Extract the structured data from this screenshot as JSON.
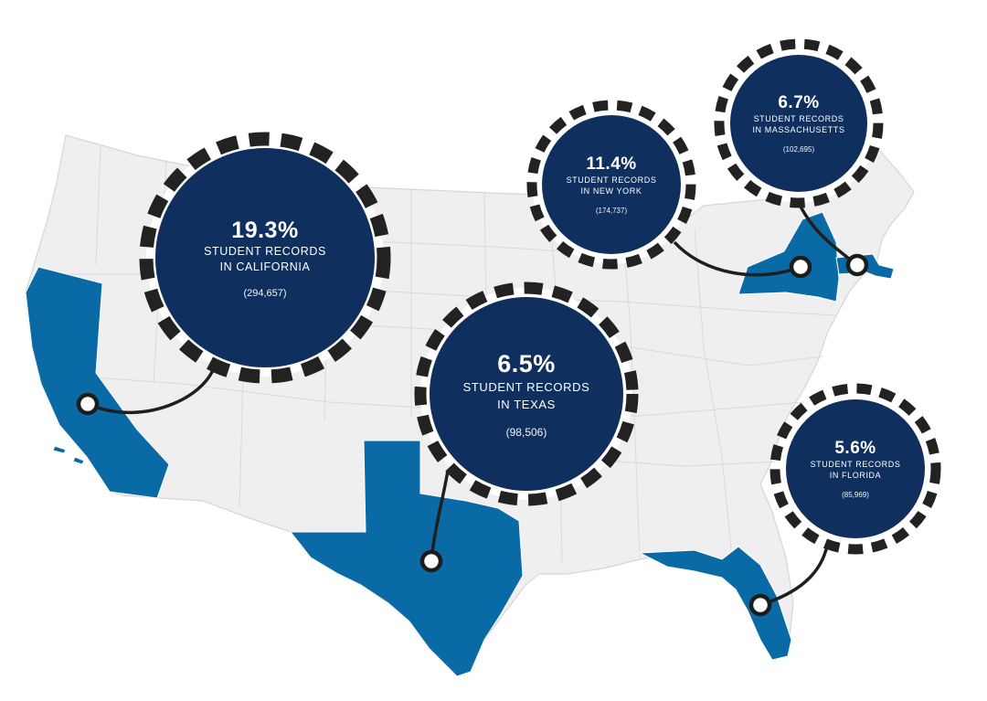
{
  "colors": {
    "land": "#efefef",
    "highlight_state": "#0a6aa6",
    "bubble": "#0f2f5f",
    "ring_dash": "#222222",
    "connector": "#1f1f1f"
  },
  "callouts": [
    {
      "state": "California",
      "percent": "19.3%",
      "label_line1": "STUDENT RECORDS",
      "label_line2": "IN CALIFORNIA",
      "count": "(294,657)"
    },
    {
      "state": "Texas",
      "percent": "6.5%",
      "label_line1": "STUDENT RECORDS",
      "label_line2": "IN TEXAS",
      "count": "(98,506)"
    },
    {
      "state": "New York",
      "percent": "11.4%",
      "label_line1": "STUDENT RECORDS",
      "label_line2": "IN NEW YORK",
      "count": "(174,737)"
    },
    {
      "state": "Massachusetts",
      "percent": "6.7%",
      "label_line1": "STUDENT RECORDS",
      "label_line2": "IN MASSACHUSETTS",
      "count": "(102,695)"
    },
    {
      "state": "Florida",
      "percent": "5.6%",
      "label_line1": "STUDENT RECORDS",
      "label_line2": "IN FLORIDA",
      "count": "(85,969)"
    }
  ]
}
